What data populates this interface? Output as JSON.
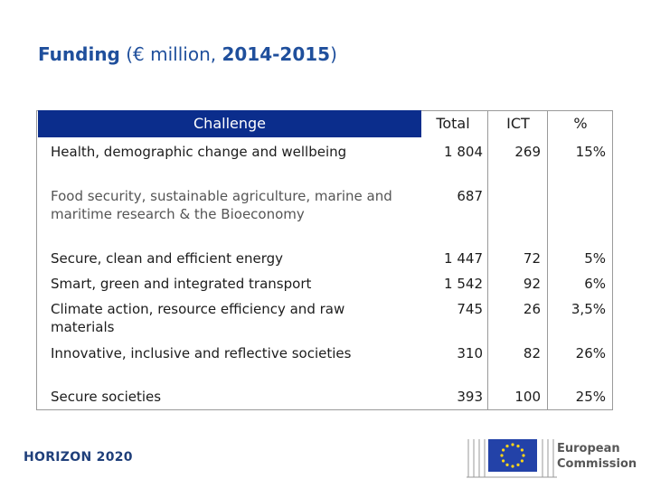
{
  "title": {
    "main": "Funding",
    "paren_open": "(€ million, ",
    "years": "2014-2015",
    "paren_close": ")"
  },
  "table": {
    "headers": {
      "challenge": "Challenge",
      "total": "Total",
      "ict": "ICT",
      "pct": "%"
    },
    "rows": [
      {
        "challenge": "Health, demographic change and wellbeing",
        "total": "1 804",
        "ict": "269",
        "pct": "15%"
      },
      {
        "challenge": "Food security, sustainable agriculture, marine and maritime research & the Bioeconomy",
        "total": "687",
        "ict": "",
        "pct": ""
      },
      {
        "challenge": "Secure, clean and efficient energy",
        "total": "1 447",
        "ict": "72",
        "pct": "5%"
      },
      {
        "challenge": "Smart, green and integrated transport",
        "total": "1 542",
        "ict": "92",
        "pct": "6%"
      },
      {
        "challenge": "Climate action, resource efficiency and raw materials",
        "total": "745",
        "ict": "26",
        "pct": "3,5%"
      },
      {
        "challenge": "Innovative, inclusive and reflective societies",
        "total": "310",
        "ict": "82",
        "pct": "26%"
      },
      {
        "challenge": "Secure societies",
        "total": "393",
        "ict": "100",
        "pct": "25%"
      }
    ]
  },
  "footer": {
    "horizon_logo": "HORIZON 2020",
    "ec_line1": "European",
    "ec_line2": "Commission"
  },
  "colors": {
    "title": "#1f4f9c",
    "header_bar": "#0b2d8c",
    "eu_blue": "#2342a8",
    "eu_star": "#ffd617"
  }
}
